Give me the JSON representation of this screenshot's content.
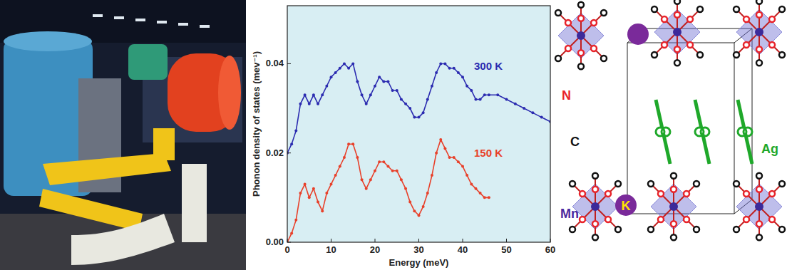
{
  "chart_data": {
    "type": "line",
    "x_label": "Energy (meV)",
    "y_label": "Phonon density of states  (mev⁻¹)",
    "x": [
      0,
      1,
      2,
      3,
      4,
      5,
      6,
      7,
      8,
      9,
      10,
      11,
      12,
      13,
      14,
      15,
      16,
      17,
      18,
      19,
      20,
      21,
      22,
      23,
      24,
      25,
      26,
      27,
      28,
      29,
      30,
      31,
      32,
      33,
      34,
      35,
      36,
      37,
      38,
      39,
      40,
      41,
      42,
      43,
      44,
      45,
      46,
      48,
      50,
      52,
      54,
      56,
      58,
      60
    ],
    "series": [
      {
        "name": "300 K",
        "color": "#2b2bb0",
        "marker": "circle",
        "line_style": "solid",
        "values": [
          0.02,
          0.022,
          0.025,
          0.031,
          0.033,
          0.031,
          0.033,
          0.031,
          0.033,
          0.035,
          0.037,
          0.038,
          0.039,
          0.04,
          0.039,
          0.04,
          0.036,
          0.033,
          0.031,
          0.033,
          0.035,
          0.037,
          0.036,
          0.036,
          0.034,
          0.034,
          0.032,
          0.031,
          0.03,
          0.028,
          0.028,
          0.029,
          0.032,
          0.035,
          0.038,
          0.04,
          0.04,
          0.039,
          0.039,
          0.038,
          0.037,
          0.035,
          0.034,
          0.032,
          0.032,
          0.033,
          0.033,
          0.033,
          0.032,
          0.031,
          0.03,
          0.029,
          0.028,
          0.027
        ]
      },
      {
        "name": "150 K",
        "color": "#e8402a",
        "marker": "circle",
        "line_style": "solid",
        "values": [
          0.0,
          0.002,
          0.005,
          0.011,
          0.013,
          0.01,
          0.012,
          0.009,
          0.007,
          0.011,
          0.013,
          0.015,
          0.017,
          0.019,
          0.022,
          0.022,
          0.019,
          0.014,
          0.012,
          0.014,
          0.016,
          0.018,
          0.018,
          0.017,
          0.016,
          0.016,
          0.014,
          0.012,
          0.009,
          0.007,
          0.006,
          0.008,
          0.011,
          0.015,
          0.02,
          0.023,
          0.021,
          0.019,
          0.019,
          0.018,
          0.017,
          0.015,
          0.013,
          0.012,
          0.011,
          0.01,
          0.01,
          null,
          null,
          null,
          null,
          null,
          null,
          null
        ]
      }
    ],
    "xlim": [
      0,
      60
    ],
    "ylim": [
      0,
      0.053
    ],
    "xticks": [
      0,
      10,
      20,
      30,
      40,
      50,
      60
    ],
    "yticks": [
      {
        "value": 0,
        "label": "0.00"
      },
      {
        "value": 0.02,
        "label": "0.02"
      },
      {
        "value": 0.04,
        "label": "0.04"
      }
    ],
    "grid": false
  },
  "structure": {
    "labels": [
      {
        "text": "N",
        "color": "#e8232a"
      },
      {
        "text": "C",
        "color": "#111111"
      },
      {
        "text": "Ag",
        "color": "#1fa82a"
      },
      {
        "text": "Mn",
        "color": "#4b2aa0"
      },
      {
        "text": "K",
        "color": "#ffe600"
      }
    ]
  }
}
